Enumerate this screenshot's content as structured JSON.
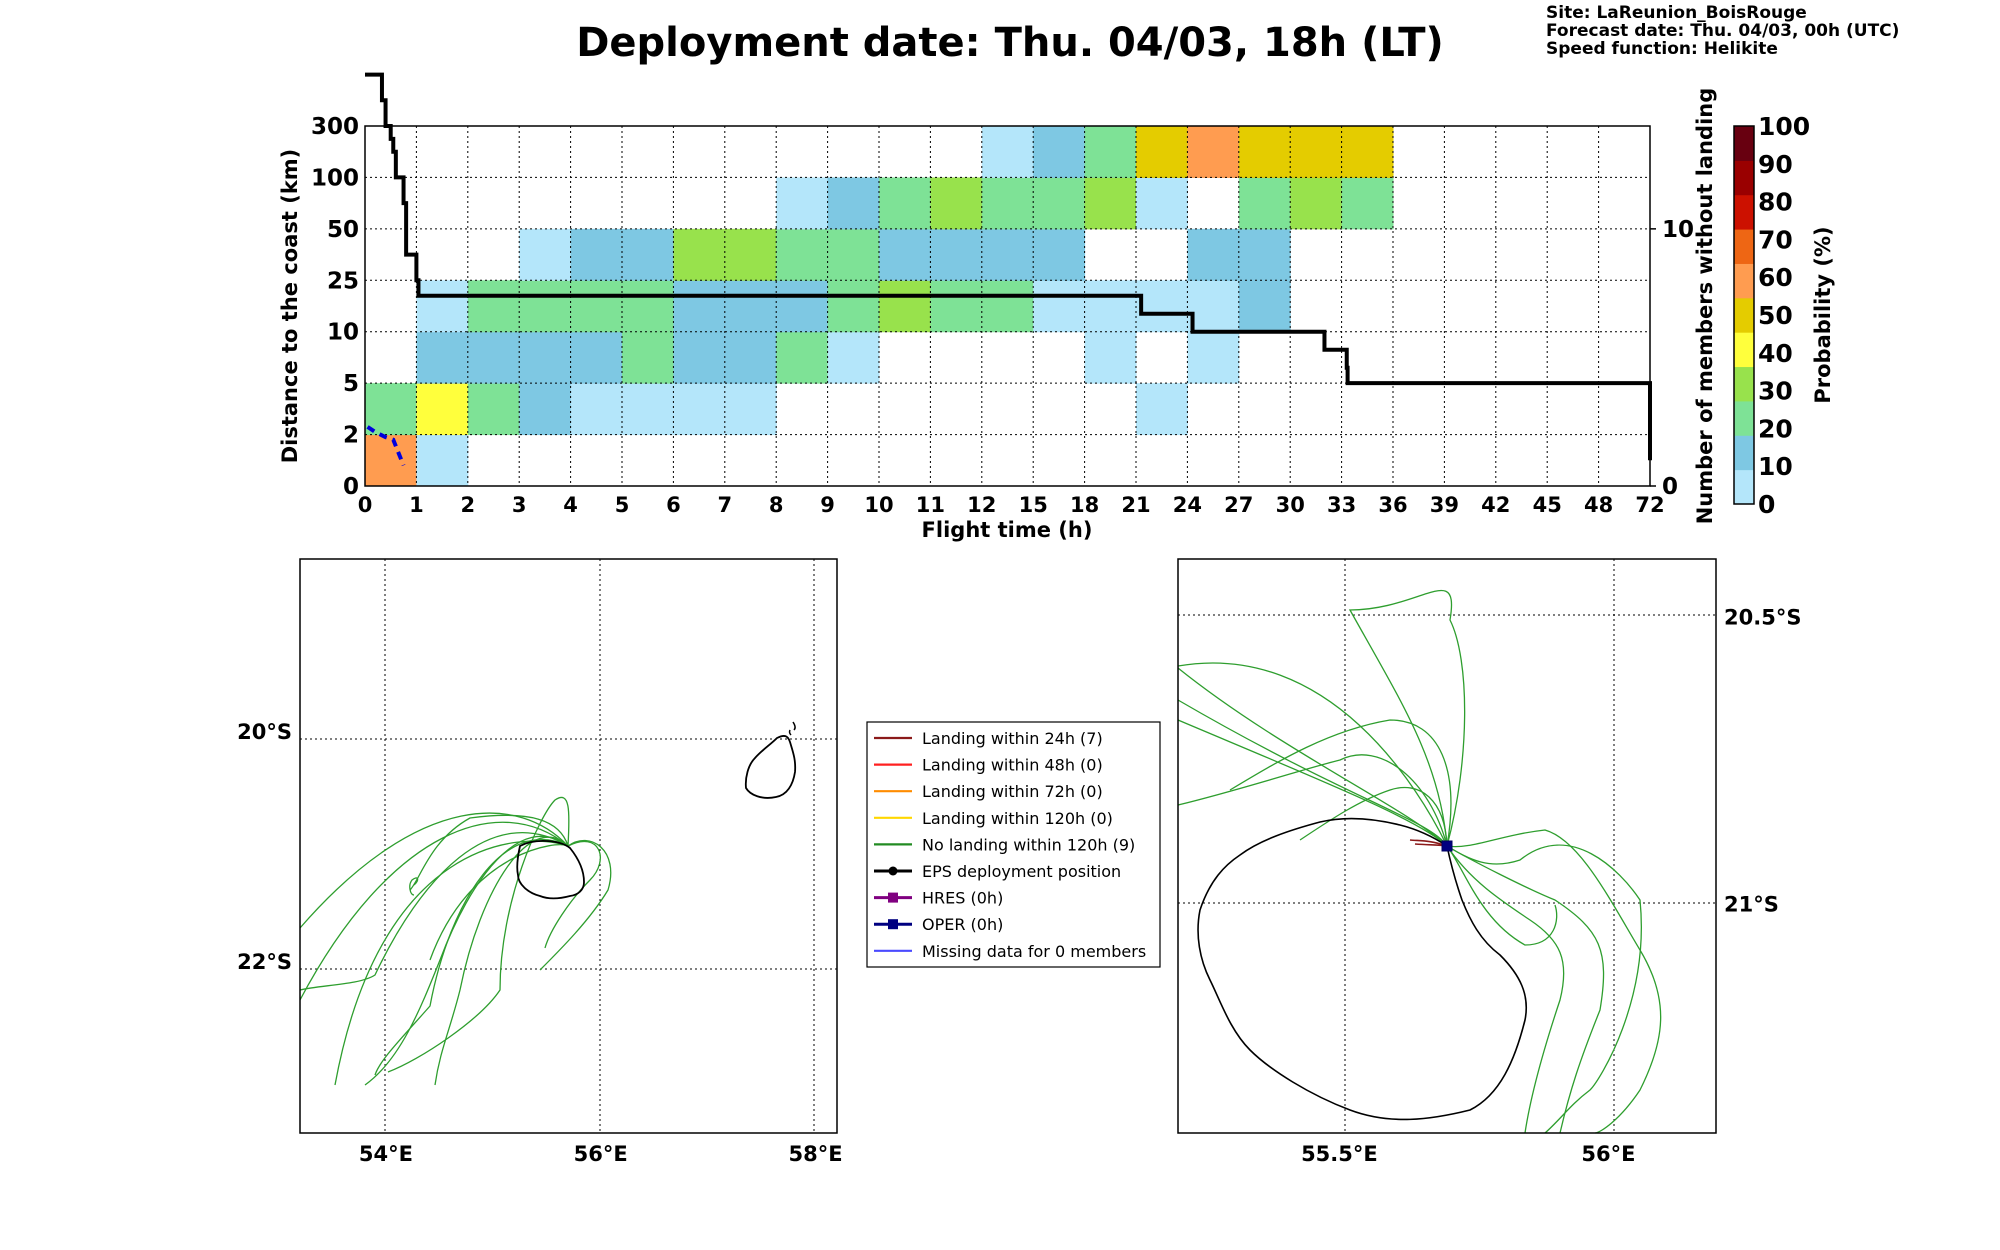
{
  "header": {
    "title": "Deployment date: Thu. 04/03, 18h (LT)",
    "info": [
      "Site: LaReunion_BoisRouge",
      "Forecast date: Thu. 04/03, 00h (UTC)",
      "Speed function: Helikite"
    ]
  },
  "chart_data": [
    {
      "type": "heatmap",
      "xlabel": "Flight time (h)",
      "ylabel": "Distance to the coast (km)",
      "y2label": "Number of members without landing",
      "colorbar_label": "Probability (%)",
      "x_ticks": [
        "0",
        "1",
        "2",
        "3",
        "4",
        "5",
        "6",
        "7",
        "8",
        "9",
        "10",
        "11",
        "12",
        "15",
        "18",
        "21",
        "24",
        "27",
        "30",
        "33",
        "36",
        "39",
        "42",
        "45",
        "48",
        "72"
      ],
      "y_ticks": [
        "0",
        "2",
        "5",
        "10",
        "25",
        "50",
        "100",
        "300"
      ],
      "y2_ticks": [
        "0",
        "10"
      ],
      "y2lim": [
        0,
        14
      ],
      "grid": true,
      "colorbar": {
        "ticks": [
          "0",
          "10",
          "20",
          "30",
          "40",
          "50",
          "60",
          "70",
          "80",
          "90",
          "100"
        ],
        "colors": [
          "#b4e6fa",
          "#7ec8e3",
          "#7ee296",
          "#98e24c",
          "#ffff3c",
          "#e4cc00",
          "#ff9c50",
          "#ee6614",
          "#cc1100",
          "#9a0000",
          "#680010"
        ]
      },
      "cells": [
        [
          0,
          0,
          6
        ],
        [
          1,
          0,
          0
        ],
        [
          0,
          1,
          2
        ],
        [
          1,
          1,
          4
        ],
        [
          2,
          1,
          2
        ],
        [
          3,
          1,
          1
        ],
        [
          4,
          1,
          0
        ],
        [
          5,
          1,
          0
        ],
        [
          6,
          1,
          0
        ],
        [
          7,
          1,
          0
        ],
        [
          15,
          1,
          0
        ],
        [
          1,
          2,
          1
        ],
        [
          2,
          2,
          1
        ],
        [
          3,
          2,
          1
        ],
        [
          4,
          2,
          1
        ],
        [
          5,
          2,
          2
        ],
        [
          6,
          2,
          1
        ],
        [
          7,
          2,
          1
        ],
        [
          8,
          2,
          2
        ],
        [
          9,
          2,
          0
        ],
        [
          14,
          2,
          0
        ],
        [
          16,
          2,
          0
        ],
        [
          1,
          3,
          0
        ],
        [
          2,
          3,
          2
        ],
        [
          3,
          3,
          2
        ],
        [
          4,
          3,
          2
        ],
        [
          5,
          3,
          2
        ],
        [
          6,
          3,
          1
        ],
        [
          7,
          3,
          1
        ],
        [
          8,
          3,
          1
        ],
        [
          9,
          3,
          2
        ],
        [
          10,
          3,
          3
        ],
        [
          11,
          3,
          2
        ],
        [
          12,
          3,
          2
        ],
        [
          13,
          3,
          0
        ],
        [
          14,
          3,
          0
        ],
        [
          15,
          3,
          0
        ],
        [
          16,
          3,
          0
        ],
        [
          17,
          3,
          1
        ],
        [
          3,
          4,
          0
        ],
        [
          4,
          4,
          1
        ],
        [
          5,
          4,
          1
        ],
        [
          6,
          4,
          3
        ],
        [
          7,
          4,
          3
        ],
        [
          8,
          4,
          2
        ],
        [
          9,
          4,
          2
        ],
        [
          10,
          4,
          1
        ],
        [
          11,
          4,
          1
        ],
        [
          12,
          4,
          1
        ],
        [
          13,
          4,
          1
        ],
        [
          16,
          4,
          1
        ],
        [
          17,
          4,
          1
        ],
        [
          8,
          5,
          0
        ],
        [
          9,
          5,
          1
        ],
        [
          10,
          5,
          2
        ],
        [
          11,
          5,
          3
        ],
        [
          12,
          5,
          2
        ],
        [
          13,
          5,
          2
        ],
        [
          14,
          5,
          3
        ],
        [
          15,
          5,
          0
        ],
        [
          17,
          5,
          2
        ],
        [
          18,
          5,
          3
        ],
        [
          19,
          5,
          2
        ],
        [
          12,
          6,
          0
        ],
        [
          13,
          6,
          1
        ],
        [
          14,
          6,
          2
        ],
        [
          15,
          6,
          5
        ],
        [
          16,
          6,
          6
        ],
        [
          17,
          6,
          5
        ],
        [
          18,
          6,
          5
        ],
        [
          19,
          6,
          5
        ]
      ],
      "members_without_landing": {
        "x": [
          0,
          0.33,
          0.4,
          0.5,
          0.55,
          0.6,
          0.75,
          0.8,
          1.0,
          1.04,
          21.3,
          24.3,
          32.0,
          33.3,
          33.35,
          72
        ],
        "y": [
          16,
          15,
          14,
          13.5,
          13,
          12,
          11,
          9,
          8,
          7.4,
          6.7,
          6.0,
          5.3,
          4.6,
          4.0,
          1
        ]
      },
      "hres_distance": {
        "x": [
          0.05,
          0.2,
          0.4,
          0.55,
          0.65,
          0.75
        ],
        "y": [
          1.15,
          1.05,
          0.95,
          0.9,
          0.65,
          0.4
        ]
      }
    },
    {
      "type": "map",
      "x_ticks": [
        "54°E",
        "56°E",
        "58°E"
      ],
      "y_ticks": [
        "20°S",
        "22°S"
      ],
      "x_tick_values": [
        54,
        56,
        58
      ],
      "y_tick_values": [
        -20,
        -22
      ],
      "lon_range": [
        53.2,
        58.2
      ],
      "lat_range": [
        -23.5,
        -18.5
      ]
    },
    {
      "type": "map",
      "x_ticks": [
        "55.5°E",
        "56°E"
      ],
      "y_ticks": [
        "20.5°S",
        "21°S"
      ],
      "x_tick_values": [
        55.5,
        56
      ],
      "y_tick_values": [
        -20.5,
        -21
      ],
      "lon_range": [
        55.2,
        56.2
      ],
      "lat_range": [
        -21.4,
        -20.4
      ]
    }
  ],
  "legend": {
    "items": [
      {
        "label": "Landing within 24h (7)",
        "color": "#8b1a1a",
        "marker": "none"
      },
      {
        "label": "Landing within 48h (0)",
        "color": "#ff2020",
        "marker": "none"
      },
      {
        "label": "Landing within 72h (0)",
        "color": "#ff8c00",
        "marker": "none"
      },
      {
        "label": "Landing within 120h (0)",
        "color": "#ffd700",
        "marker": "none"
      },
      {
        "label": "No landing within 120h (9)",
        "color": "#228b22",
        "marker": "none"
      },
      {
        "label": "EPS deployment position",
        "color": "#000000",
        "marker": "circle"
      },
      {
        "label": "HRES (0h)",
        "color": "#800080",
        "marker": "square"
      },
      {
        "label": "OPER (0h)",
        "color": "#000080",
        "marker": "square"
      },
      {
        "label": "Missing data for 0 members",
        "color": "#4a4aff",
        "marker": "none"
      }
    ]
  }
}
